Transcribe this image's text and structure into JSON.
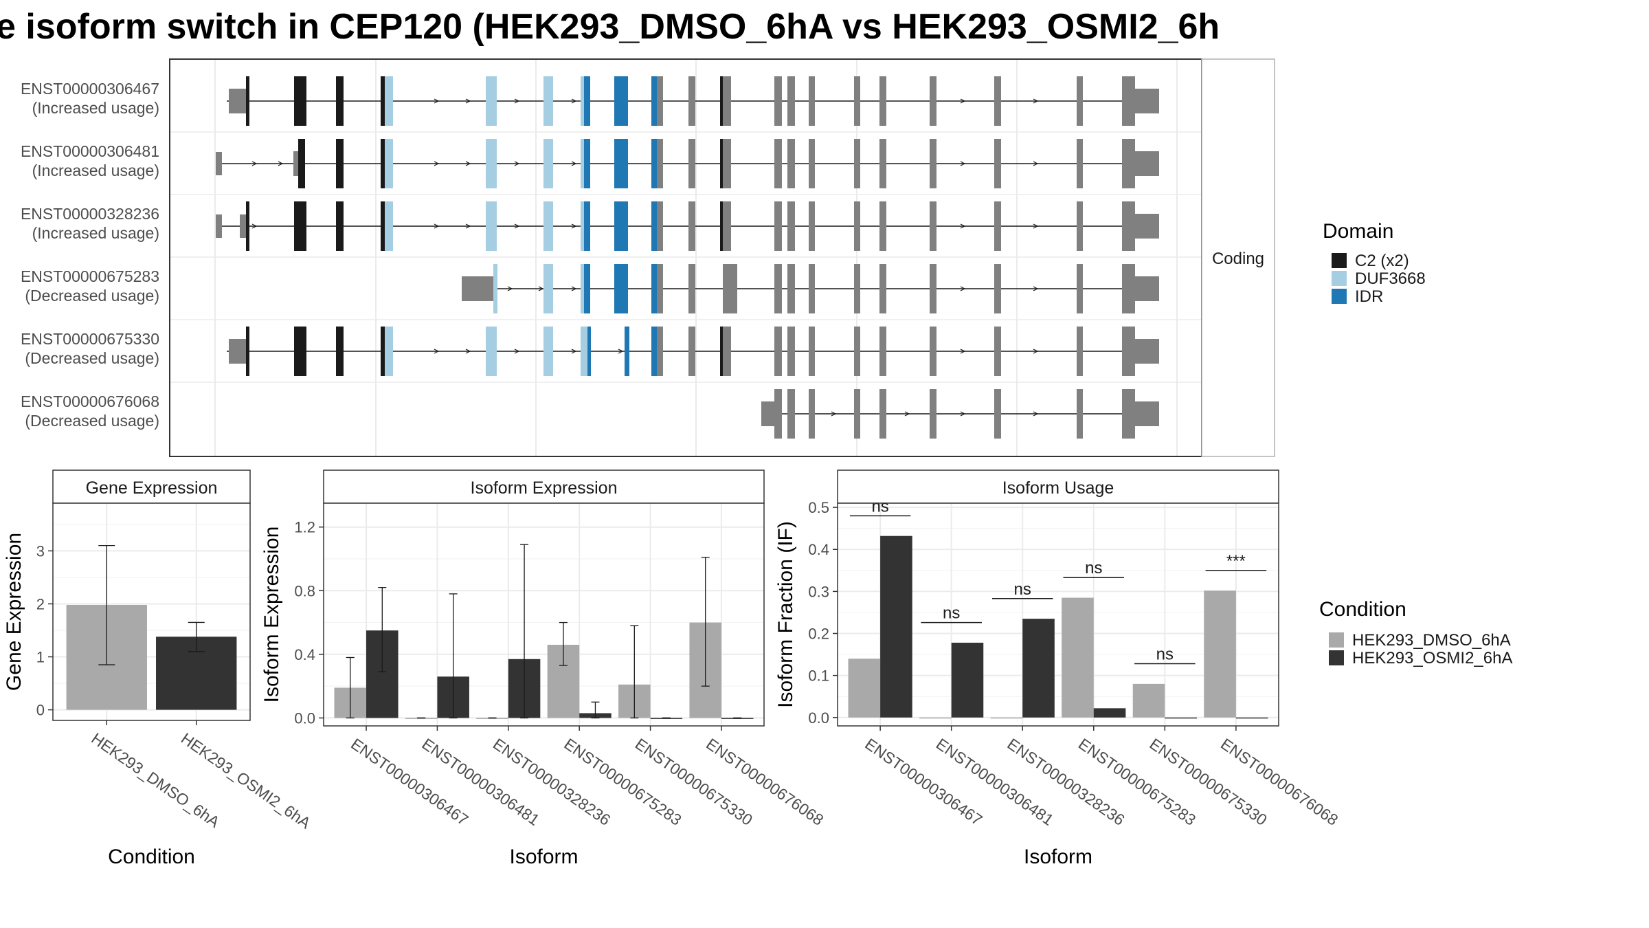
{
  "title": "e isoform switch in CEP120 (HEK293_DMSO_6hA vs HEK293_OSMI2_6h",
  "structure": {
    "facet_label": "Coding",
    "isoforms": [
      {
        "id": "ENST00000306467",
        "usage": "(Increased usage)"
      },
      {
        "id": "ENST00000306481",
        "usage": "(Increased usage)"
      },
      {
        "id": "ENST00000328236",
        "usage": "(Increased usage)"
      },
      {
        "id": "ENST00000675283",
        "usage": "(Decreased usage)"
      },
      {
        "id": "ENST00000675330",
        "usage": "(Decreased usage)"
      },
      {
        "id": "ENST00000676068",
        "usage": "(Decreased usage)"
      }
    ]
  },
  "domain_legend": {
    "title": "Domain",
    "items": [
      {
        "label": "C2 (x2)",
        "color": "#1a1a1a"
      },
      {
        "label": "DUF3668",
        "color": "#a6cee3"
      },
      {
        "label": "IDR",
        "color": "#1f78b4"
      }
    ]
  },
  "condition_legend": {
    "title": "Condition",
    "items": [
      {
        "label": "HEK293_DMSO_6hA",
        "color": "#a9a9a9"
      },
      {
        "label": "HEK293_OSMI2_6hA",
        "color": "#333333"
      }
    ]
  },
  "colors": {
    "noncoding_exon": "#808080",
    "cond1": "#a9a9a9",
    "cond2": "#333333"
  },
  "chart_data": [
    {
      "type": "bar",
      "title": "Gene Expression",
      "xlabel": "Condition",
      "ylabel": "Gene Expression",
      "categories": [
        "HEK293_DMSO_6hA",
        "HEK293_OSMI2_6hA"
      ],
      "values": [
        1.98,
        1.38
      ],
      "error_low": [
        0.85,
        1.1
      ],
      "error_high": [
        3.1,
        1.65
      ],
      "ylim": [
        -0.2,
        3.9
      ],
      "yticks": [
        0,
        1,
        2,
        3
      ]
    },
    {
      "type": "bar",
      "title": "Isoform Expression",
      "xlabel": "Isoform",
      "ylabel": "Isoform Expression",
      "categories": [
        "ENST00000306467",
        "ENST00000306481",
        "ENST00000328236",
        "ENST00000675283",
        "ENST00000675330",
        "ENST00000676068"
      ],
      "series": [
        {
          "values": [
            0.19,
            0.0,
            0.0,
            0.46,
            0.21,
            0.6
          ],
          "error_low": [
            0.0,
            0.0,
            0.0,
            0.33,
            0.0,
            0.2
          ],
          "error_high": [
            0.38,
            0.0,
            0.0,
            0.6,
            0.58,
            1.01
          ]
        },
        {
          "values": [
            0.55,
            0.26,
            0.37,
            0.03,
            0.0,
            0.0
          ],
          "error_low": [
            0.29,
            0.0,
            0.0,
            0.0,
            0.0,
            0.0
          ],
          "error_high": [
            0.82,
            0.78,
            1.09,
            0.1,
            0.0,
            0.0
          ]
        }
      ],
      "ylim": [
        -0.05,
        1.35
      ],
      "yticks": [
        "0.0",
        "0.4",
        "0.8",
        "1.2"
      ]
    },
    {
      "type": "bar",
      "title": "Isoform Usage",
      "xlabel": "Isoform",
      "ylabel": "Isoform Fraction (IF)",
      "categories": [
        "ENST00000306467",
        "ENST00000306481",
        "ENST00000328236",
        "ENST00000675283",
        "ENST00000675330",
        "ENST00000676068"
      ],
      "series": [
        {
          "values": [
            0.14,
            0.0,
            0.0,
            0.285,
            0.08,
            0.302
          ]
        },
        {
          "values": [
            0.432,
            0.178,
            0.235,
            0.022,
            0.0,
            0.0
          ]
        }
      ],
      "significance": [
        "ns",
        "ns",
        "ns",
        "ns",
        "ns",
        "***"
      ],
      "ylim": [
        -0.02,
        0.51
      ],
      "yticks": [
        "0.0",
        "0.1",
        "0.2",
        "0.3",
        "0.4",
        "0.5"
      ]
    }
  ]
}
